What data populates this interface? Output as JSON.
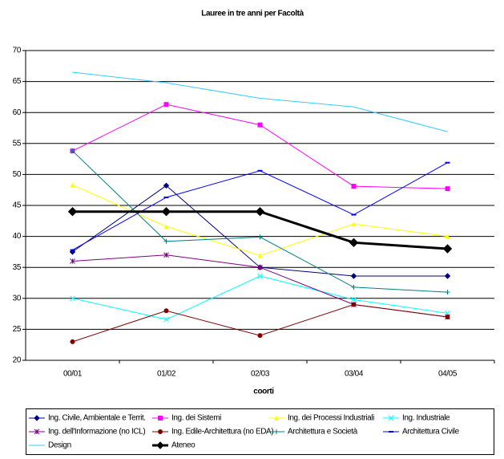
{
  "chart_data": {
    "type": "line",
    "title": "Lauree in tre anni per Facoltà",
    "x_label": "coorti",
    "categories": [
      "00/01",
      "01/02",
      "02/03",
      "03/04",
      "04/05"
    ],
    "ylim": [
      20,
      70
    ],
    "yticks": [
      20,
      25,
      30,
      35,
      40,
      45,
      50,
      55,
      60,
      65,
      70
    ],
    "grid": true,
    "legend": "bottom",
    "series": [
      {
        "name": "Ing. Civile, Ambientale e Territ.",
        "color": "#000080",
        "marker": "diamond",
        "values": [
          37.5,
          48.2,
          35,
          33.6,
          33.6
        ]
      },
      {
        "name": "Ing. dei Sistemi",
        "color": "#ff00ff",
        "marker": "square",
        "values": [
          53.8,
          61.3,
          58,
          48.1,
          47.7
        ]
      },
      {
        "name": "Ing. dei Processi Industriali",
        "color": "#ffff00",
        "marker": "triangle",
        "values": [
          48.3,
          41.6,
          36.9,
          42,
          40
        ]
      },
      {
        "name": "Ing. Industriale",
        "color": "#00ffff",
        "marker": "x",
        "values": [
          30,
          26.6,
          33.6,
          29.8,
          27.6
        ]
      },
      {
        "name": "Ing. dell'Informazione (no ICL)",
        "color": "#800080",
        "marker": "star",
        "values": [
          36,
          37,
          35,
          29,
          27
        ]
      },
      {
        "name": "Ing. Edile-Architettura (no EDA)",
        "color": "#800000",
        "marker": "circle",
        "values": [
          23,
          28,
          24,
          29,
          27
        ]
      },
      {
        "name": "Architettura e Società",
        "color": "#008080",
        "marker": "plus",
        "values": [
          53.8,
          39.2,
          39.9,
          31.8,
          31
        ]
      },
      {
        "name": "Architettura Civile",
        "color": "#0000ff",
        "marker": "dash",
        "values": [
          37.8,
          46.3,
          50.6,
          43.5,
          51.9
        ]
      },
      {
        "name": "Design",
        "color": "#33ccff",
        "marker": "none",
        "values": [
          66.5,
          64.8,
          62.3,
          60.9,
          56.9
        ]
      },
      {
        "name": "Ateneo",
        "color": "#000000",
        "marker": "diamond",
        "line_width": 3,
        "values": [
          44,
          44,
          44,
          39,
          38
        ]
      }
    ]
  }
}
